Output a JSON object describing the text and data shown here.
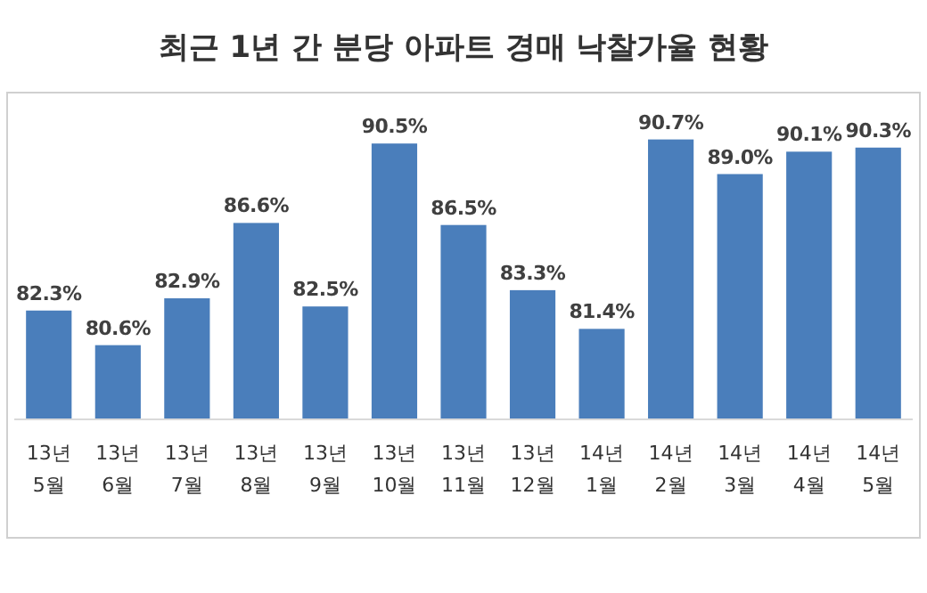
{
  "chart_data": {
    "type": "bar",
    "title": "최근 1년 간 분당 아파트 경매 낙찰가율 현황",
    "categories": [
      "13년 5월",
      "13년 6월",
      "13년 7월",
      "13년 8월",
      "13년 9월",
      "13년 10월",
      "13년 11월",
      "13년 12월",
      "14년 1월",
      "14년 2월",
      "14년 3월",
      "14년 4월",
      "14년 5월"
    ],
    "values": [
      82.3,
      80.6,
      82.9,
      86.6,
      82.5,
      90.5,
      86.5,
      83.3,
      81.4,
      90.7,
      89.0,
      90.1,
      90.3
    ],
    "value_labels": [
      "82.3%",
      "80.6%",
      "82.9%",
      "86.6%",
      "82.5%",
      "90.5%",
      "86.5%",
      "83.3%",
      "81.4%",
      "90.7%",
      "89.0%",
      "90.1%",
      "90.3%"
    ],
    "color": "#4a7ebb",
    "ylim": [
      77,
      93
    ]
  }
}
